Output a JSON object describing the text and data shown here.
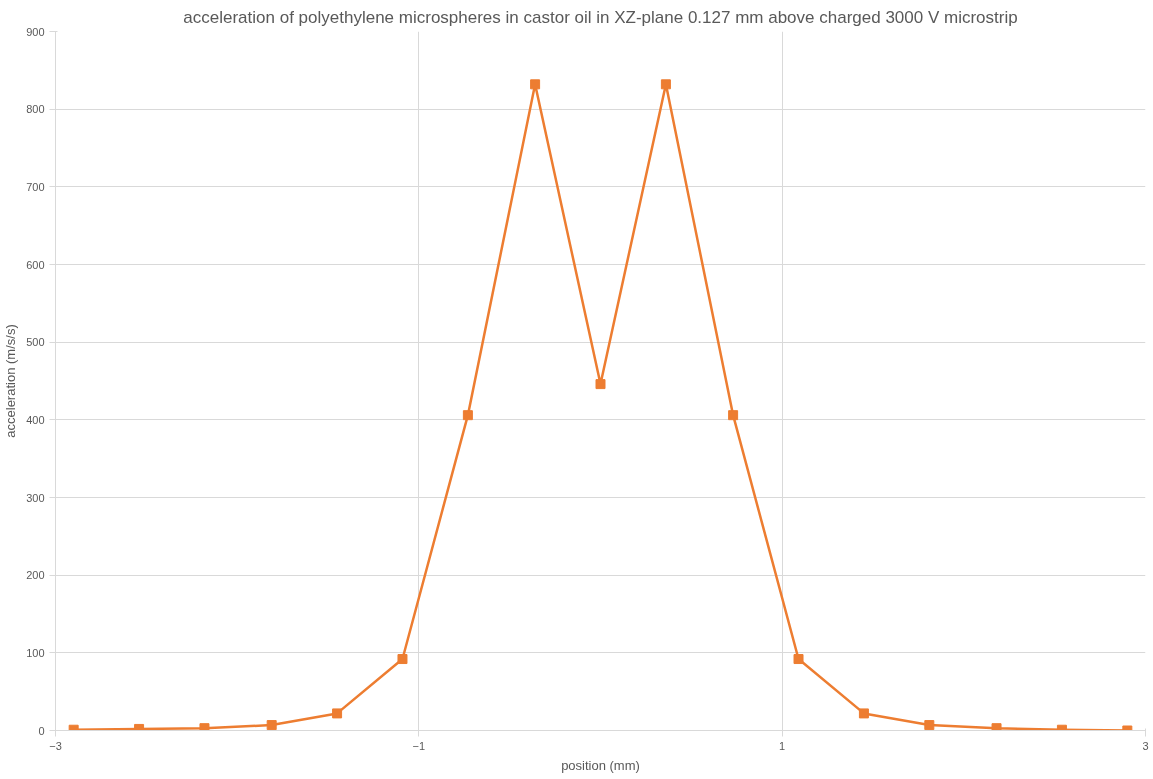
{
  "chart_data": {
    "type": "line",
    "title": "acceleration of polyethylene microspheres in castor oil in XZ-plane 0.127 mm above charged 3000 V microstrip",
    "xlabel": "position (mm)",
    "ylabel": "acceleration (m/s/s)",
    "x": [
      -2.9,
      -2.54,
      -2.18,
      -1.81,
      -1.45,
      -1.09,
      -0.73,
      -0.36,
      0,
      0.36,
      0.73,
      1.09,
      1.45,
      1.81,
      2.18,
      2.54,
      2.9
    ],
    "series": [
      {
        "color": "#ed7d31",
        "values": [
          1,
          2,
          3,
          7,
          22,
          92,
          406,
          832,
          446,
          832,
          406,
          92,
          22,
          7,
          3,
          1,
          0
        ]
      }
    ],
    "xlim": [
      -3,
      3
    ],
    "xticks": [
      -3,
      -1,
      1,
      3
    ],
    "ylim": [
      0,
      900
    ],
    "yticks": [
      0,
      100,
      200,
      300,
      400,
      500,
      600,
      700,
      800,
      900
    ],
    "grid": true,
    "marker": "square",
    "line_style": "solid"
  }
}
